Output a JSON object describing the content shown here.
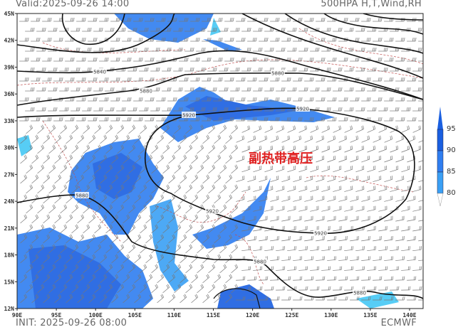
{
  "header": {
    "valid": "Valid:2025-09-26 14:00",
    "title": "500HPA H,T,Wind,RH"
  },
  "footer": {
    "init": "INIT: 2025-09-26 08:00",
    "source": "ECMWF"
  },
  "map": {
    "lon_ticks": [
      "90E",
      "95E",
      "100E",
      "105E",
      "110E",
      "115E",
      "120E",
      "125E",
      "130E",
      "135E",
      "140E"
    ],
    "lat_ticks": [
      "45N",
      "42N",
      "39N",
      "36N",
      "33N",
      "30N",
      "27N",
      "24N",
      "21N",
      "18N",
      "15N",
      "12N"
    ],
    "lon_range": [
      90,
      141.7
    ],
    "lat_range": [
      12,
      45
    ],
    "contour_labels": [
      "5840",
      "5880",
      "5880",
      "5920",
      "5920",
      "5880",
      "5920",
      "5920",
      "5880",
      "5880"
    ],
    "annotation": "副热带高压",
    "annotation_color": "#e02020"
  },
  "legend": {
    "levels": [
      "95",
      "90",
      "85",
      "80"
    ],
    "colors": [
      "#1a5fe0",
      "#2f7ef0",
      "#3aa0f5",
      "#45c8f5"
    ]
  }
}
